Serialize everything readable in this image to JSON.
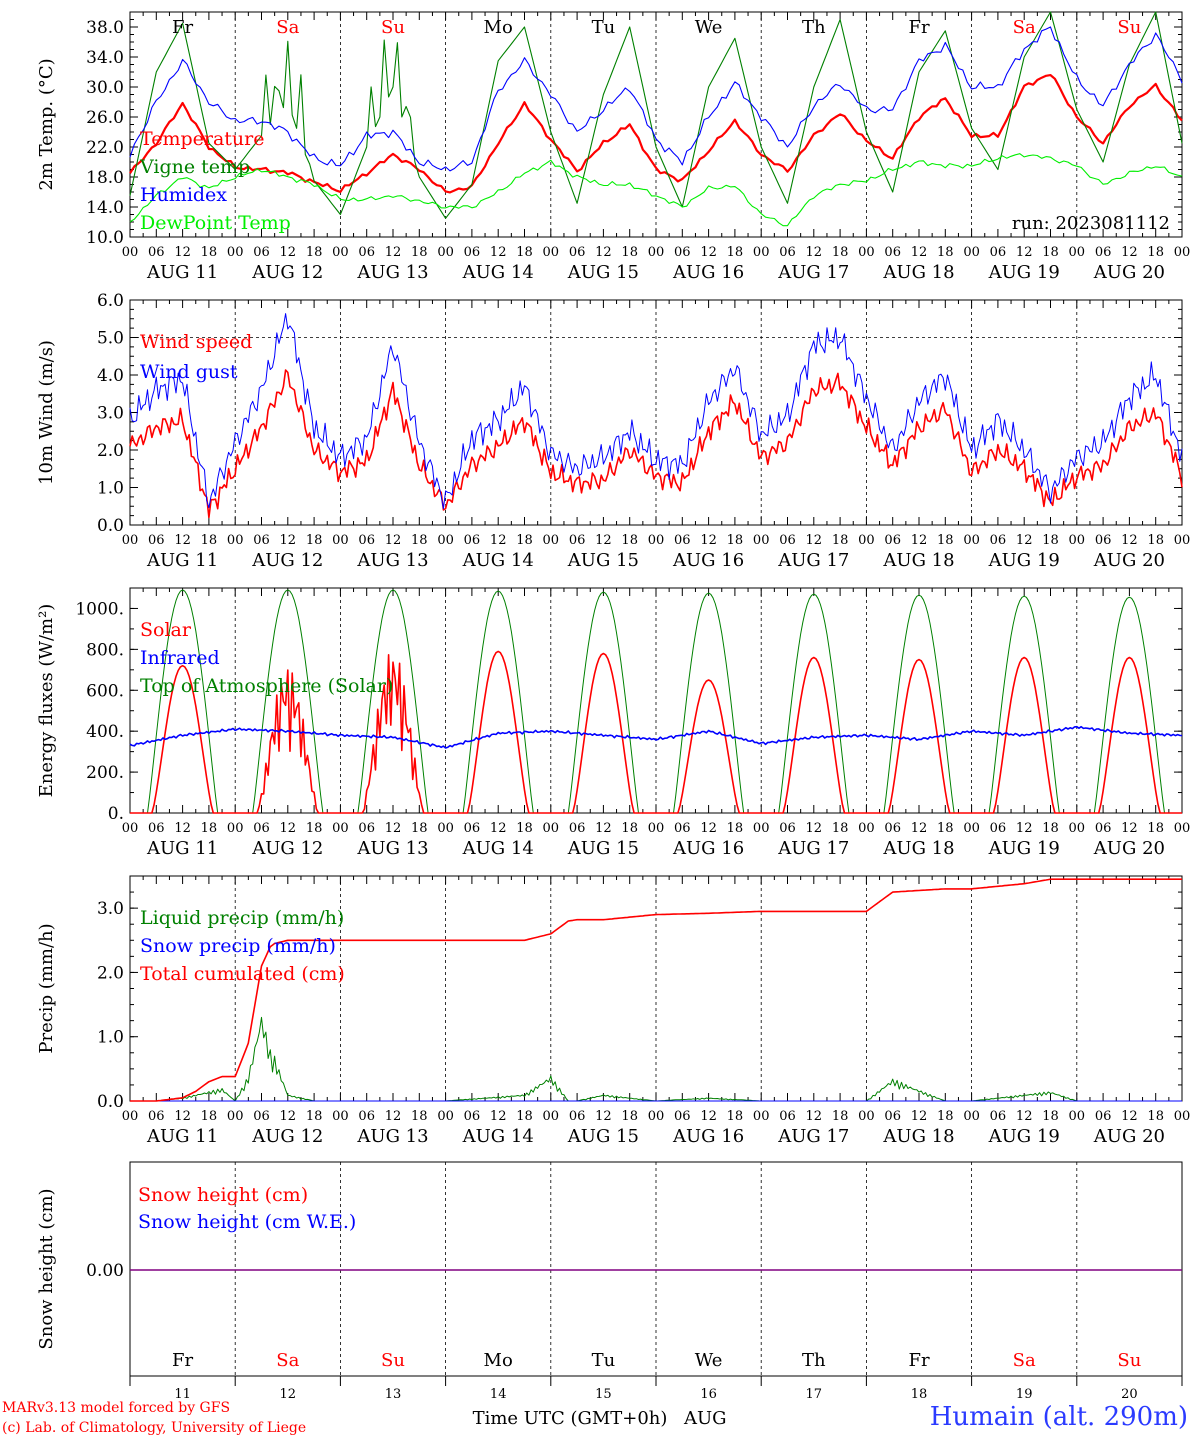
{
  "chart_data": [
    {
      "type": "line",
      "ylabel": "2m Temp. (°C)",
      "ylim": [
        10.0,
        40.0
      ],
      "yticks": [
        "10.0",
        "14.0",
        "18.0",
        "22.0",
        "26.0",
        "30.0",
        "34.0",
        "38.0"
      ],
      "grid": "dashed vertical day separators",
      "legend_placement": "left",
      "annotation": "run: 2023081112",
      "x_hours": [
        0,
        6,
        12,
        18,
        24,
        30,
        36,
        42,
        48,
        54,
        60,
        66,
        72,
        78,
        84,
        90,
        96,
        102,
        108,
        114,
        120,
        126,
        132,
        138,
        144,
        150,
        156,
        162,
        168,
        174,
        180,
        186,
        192,
        198,
        204,
        210,
        216,
        222,
        228,
        234,
        240
      ],
      "series": [
        {
          "name": "Temperature",
          "color": "#ff0000",
          "values": [
            18.5,
            22.5,
            27.8,
            22.0,
            19.3,
            19.0,
            18.6,
            17.3,
            16.2,
            18.5,
            21.0,
            19.0,
            16.0,
            16.7,
            22.5,
            27.8,
            23.0,
            18.8,
            22.5,
            25.0,
            19.0,
            17.5,
            21.5,
            25.5,
            21.0,
            18.8,
            23.5,
            26.5,
            22.8,
            20.5,
            26.0,
            28.5,
            23.5,
            23.5,
            30.0,
            31.8,
            26.0,
            22.5,
            27.5,
            30.2,
            25.5
          ]
        },
        {
          "name": "Vigne temp",
          "color": "#008000",
          "values": [
            15.5,
            32.0,
            38.5,
            22.5,
            19.0,
            23.5,
            28.0,
            17.5,
            13.0,
            22.0,
            30.0,
            18.0,
            12.5,
            17.0,
            33.5,
            38.0,
            24.0,
            14.5,
            29.0,
            38.0,
            22.0,
            14.0,
            30.0,
            36.5,
            22.0,
            14.5,
            30.0,
            39.0,
            24.0,
            16.0,
            32.0,
            37.5,
            24.5,
            19.0,
            34.0,
            40.0,
            27.0,
            20.0,
            33.0,
            40.0,
            22.5
          ]
        },
        {
          "name": "Humidex",
          "color": "#0000ff",
          "values": [
            21.0,
            28.0,
            33.5,
            28.0,
            25.5,
            25.5,
            24.0,
            20.5,
            19.5,
            23.5,
            24.0,
            20.0,
            19.0,
            20.0,
            29.5,
            33.5,
            29.0,
            24.0,
            27.0,
            30.0,
            23.0,
            20.0,
            26.0,
            30.5,
            26.0,
            22.0,
            27.5,
            30.5,
            27.0,
            27.0,
            33.5,
            35.5,
            30.0,
            30.0,
            35.0,
            38.0,
            31.0,
            27.5,
            33.0,
            37.0,
            31.0
          ]
        },
        {
          "name": "DewPoint Temp",
          "color": "#00ee00",
          "values": [
            12.0,
            15.5,
            18.0,
            16.5,
            18.0,
            19.0,
            18.0,
            17.0,
            15.0,
            15.0,
            15.5,
            14.8,
            14.0,
            14.0,
            16.0,
            18.5,
            20.0,
            18.0,
            17.0,
            17.0,
            15.5,
            14.0,
            16.5,
            16.8,
            13.0,
            11.5,
            15.5,
            17.0,
            17.5,
            19.0,
            20.0,
            19.5,
            19.5,
            20.5,
            21.0,
            20.5,
            19.5,
            17.0,
            18.5,
            19.5,
            18.0
          ]
        }
      ]
    },
    {
      "type": "line",
      "ylabel": "10m Wind (m/s)",
      "ylim": [
        0.0,
        6.0
      ],
      "yticks": [
        "0.0",
        "1.0",
        "2.0",
        "3.0",
        "4.0",
        "5.0",
        "6.0"
      ],
      "grid": "dashed vertical day separators and dashed line at 5.0",
      "legend_placement": "top-left",
      "x_hours": [
        0,
        6,
        12,
        18,
        24,
        30,
        36,
        42,
        48,
        54,
        60,
        66,
        72,
        78,
        84,
        90,
        96,
        102,
        108,
        114,
        120,
        126,
        132,
        138,
        144,
        150,
        156,
        162,
        168,
        174,
        180,
        186,
        192,
        198,
        204,
        210,
        216,
        222,
        228,
        234,
        240
      ],
      "series": [
        {
          "name": "Wind speed",
          "color": "#ff0000",
          "values": [
            2.1,
            2.6,
            2.8,
            0.4,
            1.5,
            2.6,
            4.0,
            2.0,
            1.4,
            1.7,
            3.6,
            1.6,
            0.5,
            1.6,
            2.1,
            2.8,
            1.4,
            1.1,
            1.2,
            2.0,
            1.3,
            1.1,
            2.5,
            3.3,
            1.8,
            2.2,
            3.6,
            3.8,
            2.6,
            1.6,
            2.6,
            3.1,
            1.4,
            2.0,
            1.5,
            0.6,
            1.3,
            1.6,
            2.6,
            3.0,
            1.3
          ]
        },
        {
          "name": "Wind gust",
          "color": "#0000ff",
          "values": [
            2.8,
            3.6,
            3.9,
            0.6,
            2.2,
            3.6,
            5.6,
            2.6,
            1.8,
            2.3,
            4.8,
            2.2,
            0.6,
            2.3,
            2.8,
            3.7,
            1.9,
            1.5,
            1.8,
            2.5,
            1.7,
            1.6,
            3.3,
            4.2,
            2.4,
            2.9,
            4.8,
            5.0,
            3.4,
            2.0,
            3.3,
            4.0,
            2.0,
            2.8,
            2.0,
            0.9,
            1.8,
            2.2,
            3.4,
            4.0,
            1.8
          ]
        }
      ]
    },
    {
      "type": "line",
      "ylabel": "Energy fluxes (W/m²)",
      "ylim": [
        0,
        1100
      ],
      "yticks": [
        "0.",
        "200.",
        "400.",
        "600.",
        "800.",
        "1000."
      ],
      "grid": "dashed vertical day separators",
      "legend_placement": "top-left",
      "solar_daily_peak": [
        720,
        720,
        800,
        790,
        780,
        650,
        760,
        750,
        760,
        760
      ],
      "toa_daily_peak": [
        1090,
        1090,
        1090,
        1085,
        1080,
        1075,
        1070,
        1065,
        1060,
        1055
      ],
      "x_hours": [
        0,
        12,
        24,
        36,
        48,
        60,
        72,
        84,
        96,
        108,
        120,
        132,
        144,
        156,
        168,
        180,
        192,
        204,
        216,
        228,
        240
      ],
      "series": [
        {
          "name": "Solar",
          "color": "#ff0000",
          "values": "daily bell 05h-19h UTC, peaks in solar_daily_peak; fluctuating on Aug 12 and Aug 13"
        },
        {
          "name": "Infrared",
          "color": "#0000ff",
          "values": [
            330,
            380,
            410,
            400,
            380,
            370,
            320,
            390,
            400,
            380,
            360,
            400,
            340,
            370,
            380,
            360,
            400,
            380,
            420,
            390,
            380
          ]
        },
        {
          "name": "Top of Atmosphere (Solar)",
          "color": "#008000",
          "values": "daily bell 04h-20h UTC, peaks in toa_daily_peak"
        }
      ]
    },
    {
      "type": "line",
      "ylabel": "Precip (mm/h)",
      "ylim": [
        0.0,
        3.5
      ],
      "yticks": [
        "0.0",
        "1.0",
        "2.0",
        "3.0"
      ],
      "grid": "dashed vertical day separators",
      "legend_placement": "top-left",
      "x_hours": [
        0,
        6,
        12,
        15,
        18,
        21,
        24,
        27,
        30,
        32,
        33,
        36,
        42,
        48,
        60,
        72,
        90,
        96,
        100,
        102,
        108,
        120,
        132,
        144,
        156,
        168,
        174,
        186,
        192,
        204,
        210,
        216,
        228,
        240
      ],
      "series": [
        {
          "name": "Liquid precip (mm/h)",
          "color": "#008000",
          "values": [
            0,
            0,
            0.05,
            0.1,
            0.15,
            0.2,
            0.0,
            0.4,
            1.4,
            0.8,
            0.7,
            0.1,
            0.0,
            0,
            0,
            0,
            0.1,
            0.4,
            0,
            0,
            0.1,
            0,
            0.05,
            0,
            0,
            0,
            0.35,
            0,
            0,
            0.1,
            0.15,
            0,
            0,
            0
          ]
        },
        {
          "name": "Snow precip (mm/h)",
          "color": "#0000ff",
          "values": [
            0,
            0,
            0,
            0,
            0,
            0,
            0,
            0,
            0,
            0,
            0,
            0,
            0,
            0,
            0,
            0,
            0,
            0,
            0,
            0,
            0,
            0,
            0,
            0,
            0,
            0,
            0,
            0,
            0,
            0,
            0,
            0,
            0,
            0
          ]
        },
        {
          "name": "Total cumulated (cm)",
          "color": "#ff0000",
          "values": [
            0,
            0,
            0.05,
            0.15,
            0.3,
            0.38,
            0.38,
            0.9,
            2.1,
            2.4,
            2.45,
            2.5,
            2.5,
            2.5,
            2.5,
            2.5,
            2.5,
            2.6,
            2.8,
            2.82,
            2.82,
            2.9,
            2.92,
            2.95,
            2.95,
            2.95,
            3.25,
            3.3,
            3.3,
            3.38,
            3.45,
            3.45,
            3.45,
            3.45
          ]
        }
      ]
    },
    {
      "type": "line",
      "ylabel": "Snow height (cm)",
      "yticks": [
        "0.00"
      ],
      "grid": "dashed vertical day separators",
      "legend_placement": "top-left",
      "series": [
        {
          "name": "Snow height (cm)",
          "color": "#ff0000",
          "values": [
            0,
            0
          ]
        },
        {
          "name": "Snow height (cm W.E.)",
          "color": "#0000ff",
          "values": [
            0,
            0
          ]
        }
      ]
    }
  ],
  "axes": {
    "hour_labels": [
      "00",
      "06",
      "12",
      "18"
    ],
    "date_labels": [
      "AUG 11",
      "AUG 12",
      "AUG 13",
      "AUG 14",
      "AUG 15",
      "AUG 16",
      "AUG 17",
      "AUG 18",
      "AUG 19",
      "AUG 20"
    ],
    "weekdays": [
      "Fr",
      "Sa",
      "Su",
      "Mo",
      "Tu",
      "We",
      "Th",
      "Fr",
      "Sa",
      "Su"
    ],
    "weekend_flags": [
      false,
      true,
      true,
      false,
      false,
      false,
      false,
      false,
      true,
      true
    ],
    "bottom_day_numbers": [
      "11",
      "12",
      "13",
      "14",
      "15",
      "16",
      "17",
      "18",
      "19",
      "20"
    ],
    "final_hour_label": "00",
    "xlabel": "Time UTC (GMT+0h)",
    "xlabel_month": "AUG"
  },
  "footer": {
    "model_line": "MARv3.13 model forced by GFS",
    "credit_line": "(c) Lab. of Climatology, University of Liege",
    "station": "Humain (alt. 290m)"
  },
  "colors": {
    "weekday": "#000000",
    "weekend": "#ff0000",
    "red": "#ff0000",
    "green": "#008000",
    "blue": "#0000ff",
    "lightgreen": "#00ee00",
    "purple": "#800080"
  }
}
